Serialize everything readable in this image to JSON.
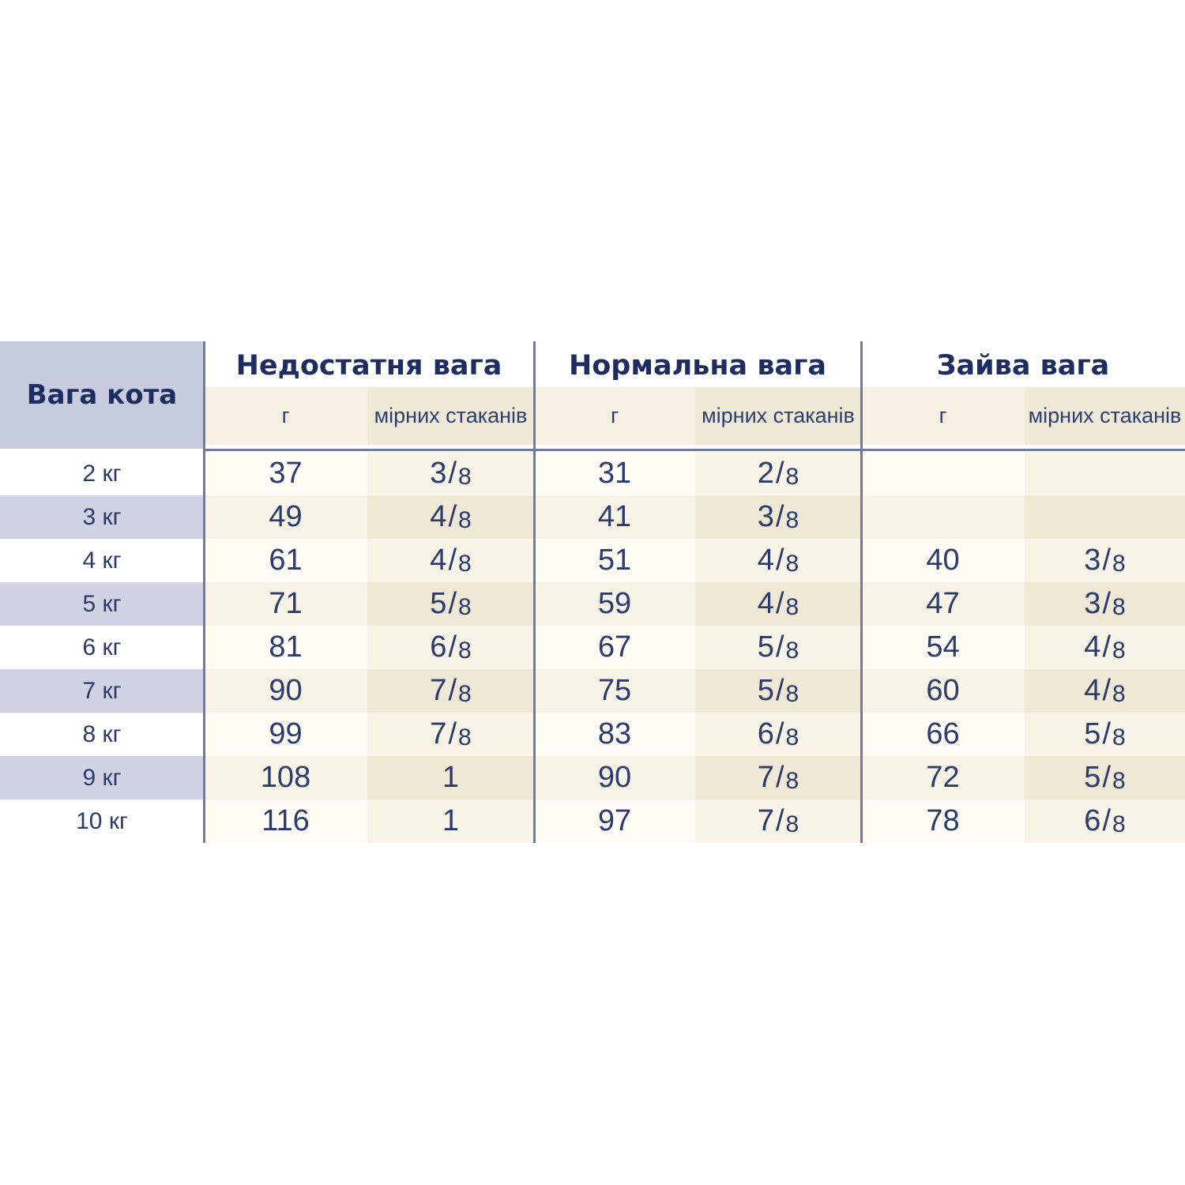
{
  "palette": {
    "background": "#ffffff",
    "header_navy": "#1e2d61",
    "value_navy": "#2c3b6e",
    "lavender_header": "#c8ccdf",
    "lavender_row": "#cfd3e3",
    "cream_light": "#f6f1e3",
    "cream_dark": "#efe9d7",
    "divider": "#6f78a6"
  },
  "chart_data": {
    "type": "table",
    "row_header": "Вага кота",
    "group_headers": [
      "Недостатня вага",
      "Нормальна вага",
      "Зайва вага"
    ],
    "sub_headers": [
      "г",
      "мірних стаканів"
    ],
    "rows": [
      [
        "2 кг",
        "37",
        "3/8",
        "31",
        "2/8",
        "",
        ""
      ],
      [
        "3 кг",
        "49",
        "4/8",
        "41",
        "3/8",
        "",
        ""
      ],
      [
        "4 кг",
        "61",
        "4/8",
        "51",
        "4/8",
        "40",
        "3/8"
      ],
      [
        "5 кг",
        "71",
        "5/8",
        "59",
        "4/8",
        "47",
        "3/8"
      ],
      [
        "6 кг",
        "81",
        "6/8",
        "67",
        "5/8",
        "54",
        "4/8"
      ],
      [
        "7 кг",
        "90",
        "7/8",
        "75",
        "5/8",
        "60",
        "4/8"
      ],
      [
        "8 кг",
        "99",
        "7/8",
        "83",
        "6/8",
        "66",
        "5/8"
      ],
      [
        "9 кг",
        "108",
        "1",
        "90",
        "7/8",
        "72",
        "5/8"
      ],
      [
        "10 кг",
        "116",
        "1",
        "97",
        "7/8",
        "78",
        "6/8"
      ]
    ]
  }
}
